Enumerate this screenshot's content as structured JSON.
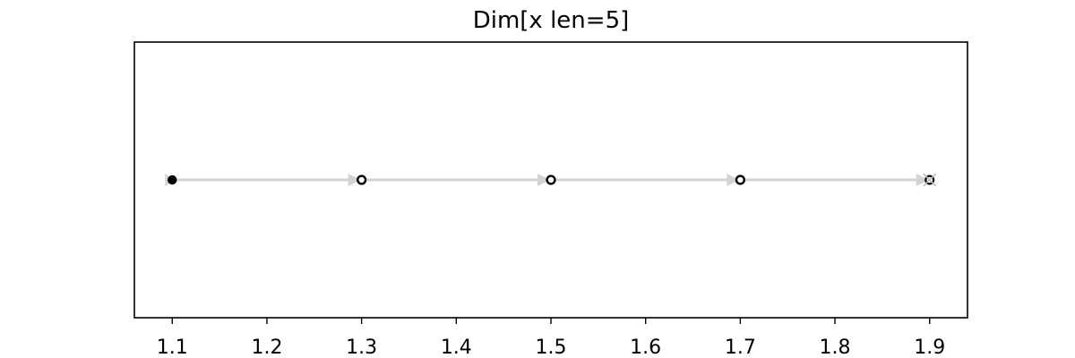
{
  "chart_data": {
    "type": "scatter",
    "title": "Dim[x len=5]",
    "xlabel": "",
    "ylabel": "",
    "xlim": [
      1.06,
      1.94
    ],
    "ylim": [
      -1,
      1
    ],
    "x": [
      1.1,
      1.3,
      1.5,
      1.7,
      1.9
    ],
    "y": [
      0,
      0,
      0,
      0,
      0
    ],
    "x_ticks": [
      1.1,
      1.2,
      1.3,
      1.4,
      1.5,
      1.6,
      1.7,
      1.8,
      1.9
    ],
    "x_tick_labels": [
      "1.1",
      "1.2",
      "1.3",
      "1.4",
      "1.5",
      "1.6",
      "1.7",
      "1.8",
      "1.9"
    ],
    "y_ticks_visible": false,
    "grid": false,
    "legend": "none",
    "markers": {
      "first": "filled-circle",
      "middle": "ring",
      "last": "x-marked-circle"
    },
    "connector": "arrows-between-consecutive-points",
    "colors": {
      "marker": "#000000",
      "connector": "#d3d3d3",
      "axes": "#000000",
      "background": "#ffffff"
    }
  }
}
